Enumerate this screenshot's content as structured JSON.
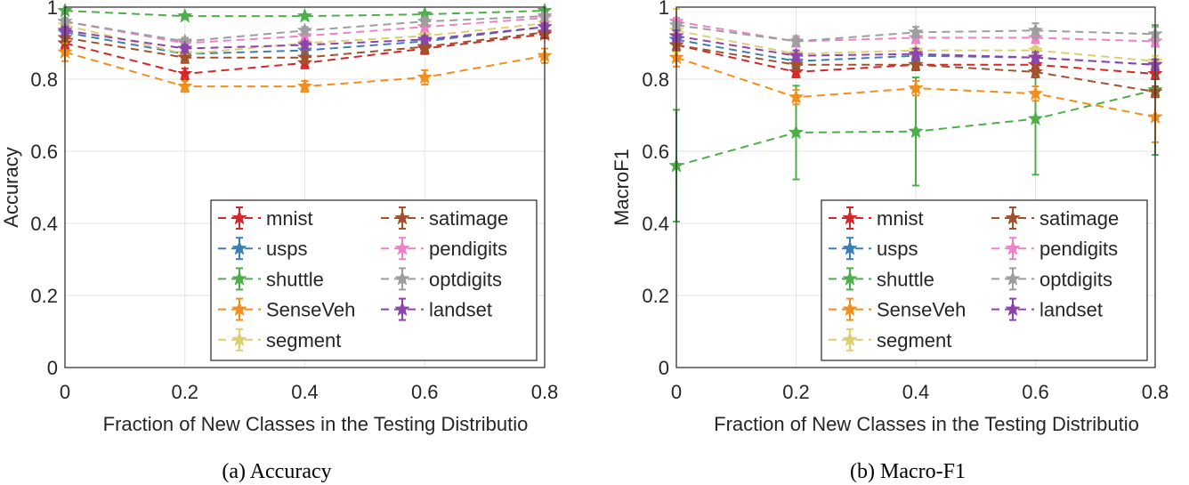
{
  "chart_data": [
    {
      "type": "line",
      "panel": "a",
      "title": "",
      "caption": "(a)  Accuracy",
      "xlabel": "Fraction of New Classes in the Testing Distributio",
      "ylabel": "Accuracy",
      "x": [
        0,
        0.2,
        0.4,
        0.6,
        0.8
      ],
      "xticks": [
        "0",
        "0.2",
        "0.4",
        "0.6",
        "0.8"
      ],
      "yticks": [
        "0",
        "0.2",
        "0.4",
        "0.6",
        "0.8",
        "1"
      ],
      "xlim": [
        0,
        0.8
      ],
      "ylim": [
        0,
        1
      ],
      "grid": true,
      "legend_position": "bottom-right",
      "series": [
        {
          "name": "mnist",
          "color": "#d62728",
          "values": [
            0.9,
            0.815,
            0.845,
            0.885,
            0.925
          ],
          "errors": [
            0.015,
            0.015,
            0.015,
            0.015,
            0.012
          ]
        },
        {
          "name": "usps",
          "color": "#3b7fb5",
          "values": [
            0.93,
            0.87,
            0.88,
            0.905,
            0.945
          ],
          "errors": [
            0.01,
            0.01,
            0.01,
            0.01,
            0.01
          ]
        },
        {
          "name": "shuttle",
          "color": "#4daf4a",
          "values": [
            0.99,
            0.975,
            0.975,
            0.98,
            0.99
          ],
          "errors": [
            0.005,
            0.005,
            0.005,
            0.005,
            0.005
          ]
        },
        {
          "name": "SenseVeh",
          "color": "#f28e1c",
          "values": [
            0.875,
            0.78,
            0.78,
            0.805,
            0.865
          ],
          "errors": [
            0.025,
            0.015,
            0.015,
            0.02,
            0.02
          ]
        },
        {
          "name": "segment",
          "color": "#dccf6f",
          "values": [
            0.95,
            0.87,
            0.9,
            0.92,
            0.955
          ],
          "errors": [
            0.01,
            0.01,
            0.01,
            0.01,
            0.01
          ]
        },
        {
          "name": "satimage",
          "color": "#a0522d",
          "values": [
            0.915,
            0.86,
            0.86,
            0.89,
            0.93
          ],
          "errors": [
            0.01,
            0.015,
            0.015,
            0.015,
            0.01
          ]
        },
        {
          "name": "pendigits",
          "color": "#ee82c8",
          "values": [
            0.96,
            0.9,
            0.92,
            0.945,
            0.97
          ],
          "errors": [
            0.01,
            0.015,
            0.01,
            0.01,
            0.01
          ]
        },
        {
          "name": "optdigits",
          "color": "#9e9e9e",
          "values": [
            0.96,
            0.905,
            0.935,
            0.96,
            0.975
          ],
          "errors": [
            0.01,
            0.01,
            0.01,
            0.01,
            0.01
          ]
        },
        {
          "name": "landset",
          "color": "#8e44ad",
          "values": [
            0.935,
            0.885,
            0.895,
            0.91,
            0.945
          ],
          "errors": [
            0.01,
            0.01,
            0.01,
            0.01,
            0.01
          ]
        }
      ]
    },
    {
      "type": "line",
      "panel": "b",
      "title": "",
      "caption": "(b)  Macro-F1",
      "xlabel": "Fraction of New Classes in the Testing Distributio",
      "ylabel": "MacroF1",
      "x": [
        0,
        0.2,
        0.4,
        0.6,
        0.8
      ],
      "xticks": [
        "0",
        "0.2",
        "0.4",
        "0.6",
        "0.8"
      ],
      "yticks": [
        "0",
        "0.2",
        "0.4",
        "0.6",
        "0.8",
        "1"
      ],
      "xlim": [
        0,
        0.8
      ],
      "ylim": [
        0,
        1
      ],
      "grid": true,
      "legend_position": "bottom-right",
      "series": [
        {
          "name": "mnist",
          "color": "#d62728",
          "values": [
            0.895,
            0.82,
            0.84,
            0.84,
            0.815
          ],
          "errors": [
            0.015,
            0.015,
            0.015,
            0.015,
            0.015
          ]
        },
        {
          "name": "usps",
          "color": "#3b7fb5",
          "values": [
            0.91,
            0.85,
            0.865,
            0.86,
            0.84
          ],
          "errors": [
            0.015,
            0.015,
            0.015,
            0.015,
            0.015
          ]
        },
        {
          "name": "shuttle",
          "color": "#4daf4a",
          "values": [
            0.56,
            0.652,
            0.655,
            0.69,
            0.77
          ],
          "errors": [
            0.155,
            0.13,
            0.15,
            0.155,
            0.18
          ]
        },
        {
          "name": "SenseVeh",
          "color": "#f28e1c",
          "values": [
            0.86,
            0.75,
            0.775,
            0.76,
            0.695
          ],
          "errors": [
            0.025,
            0.02,
            0.02,
            0.02,
            0.07
          ]
        },
        {
          "name": "segment",
          "color": "#dccf6f",
          "values": [
            0.935,
            0.87,
            0.88,
            0.88,
            0.85
          ],
          "errors": [
            0.06,
            0.01,
            0.02,
            0.01,
            0.015
          ]
        },
        {
          "name": "satimage",
          "color": "#a0522d",
          "values": [
            0.895,
            0.84,
            0.84,
            0.82,
            0.765
          ],
          "errors": [
            0.015,
            0.015,
            0.015,
            0.015,
            0.015
          ]
        },
        {
          "name": "pendigits",
          "color": "#ee82c8",
          "values": [
            0.96,
            0.905,
            0.915,
            0.915,
            0.905
          ],
          "errors": [
            0.01,
            0.015,
            0.015,
            0.015,
            0.015
          ]
        },
        {
          "name": "optdigits",
          "color": "#9e9e9e",
          "values": [
            0.95,
            0.905,
            0.93,
            0.935,
            0.925
          ],
          "errors": [
            0.01,
            0.01,
            0.015,
            0.02,
            0.02
          ]
        },
        {
          "name": "landset",
          "color": "#8e44ad",
          "values": [
            0.92,
            0.865,
            0.87,
            0.86,
            0.84
          ],
          "errors": [
            0.015,
            0.015,
            0.015,
            0.015,
            0.015
          ]
        }
      ]
    }
  ]
}
